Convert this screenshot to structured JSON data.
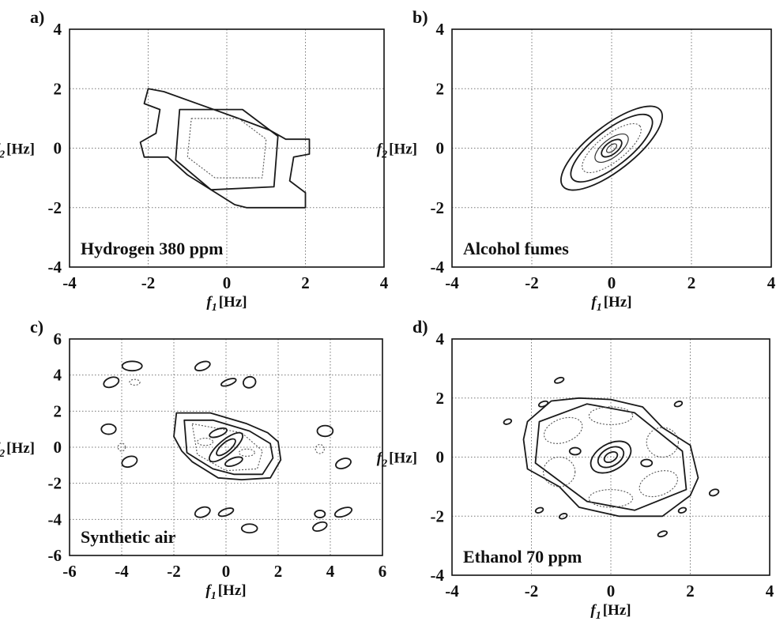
{
  "chart_data": [
    {
      "type": "contour",
      "panel_label": "a)",
      "annotation": "Hydrogen  380 ppm",
      "xlabel": "f1 [Hz]",
      "ylabel": "f2 [Hz]",
      "xlim": [
        -4,
        4
      ],
      "ylim": [
        -4,
        4
      ],
      "xticks": [
        -4,
        -2,
        0,
        2,
        4
      ],
      "yticks": [
        -4,
        -2,
        0,
        2,
        4
      ],
      "grid": true,
      "contours": [
        {
          "style": "solid",
          "points": [
            [
              -2,
              2
            ],
            [
              -1.6,
              1.9
            ],
            [
              0.3,
              1
            ],
            [
              1.1,
              0.6
            ],
            [
              1.5,
              0.3
            ],
            [
              2.1,
              0.3
            ],
            [
              2.1,
              -0.2
            ],
            [
              1.7,
              -0.3
            ],
            [
              1.6,
              -1.1
            ],
            [
              2.0,
              -1.5
            ],
            [
              2.0,
              -2.0
            ],
            [
              0.5,
              -2.0
            ],
            [
              0.2,
              -1.9
            ],
            [
              -1.0,
              -0.9
            ],
            [
              -1.5,
              -0.3
            ],
            [
              -2.1,
              -0.3
            ],
            [
              -2.2,
              0.2
            ],
            [
              -1.8,
              0.5
            ],
            [
              -1.7,
              1.3
            ],
            [
              -2.1,
              1.5
            ]
          ]
        },
        {
          "style": "solid",
          "points": [
            [
              -1.2,
              1.3
            ],
            [
              0.4,
              1.3
            ],
            [
              1.3,
              0.4
            ],
            [
              1.2,
              -1.3
            ],
            [
              -0.4,
              -1.4
            ],
            [
              -1.3,
              -0.4
            ]
          ]
        },
        {
          "style": "dotted",
          "points": [
            [
              -0.9,
              1.0
            ],
            [
              0.3,
              1.0
            ],
            [
              1.0,
              0.3
            ],
            [
              0.9,
              -1.0
            ],
            [
              -0.3,
              -1.0
            ],
            [
              -1.0,
              -0.3
            ]
          ]
        }
      ]
    },
    {
      "type": "contour",
      "panel_label": "b)",
      "annotation": "Alcohol fumes",
      "xlabel": "f1 [Hz]",
      "ylabel": "f2 [Hz]",
      "xlim": [
        -4,
        4
      ],
      "ylim": [
        -4,
        4
      ],
      "xticks": [
        -4,
        -2,
        0,
        2,
        4
      ],
      "yticks": [
        -4,
        -2,
        0,
        2,
        4
      ],
      "grid": true,
      "contours": [
        {
          "style": "ellipse-solid",
          "cx": 0,
          "cy": 0,
          "rx": 1.55,
          "ry": 0.75,
          "angle": -38
        },
        {
          "style": "ellipse-solid",
          "cx": 0,
          "cy": 0,
          "rx": 1.25,
          "ry": 0.6,
          "angle": -38
        },
        {
          "style": "ellipse-dotted",
          "cx": 0,
          "cy": 0,
          "rx": 0.9,
          "ry": 0.45,
          "angle": -38
        },
        {
          "style": "ellipse-thin",
          "cx": 0,
          "cy": 0,
          "rx": 0.5,
          "ry": 0.3,
          "angle": -38
        },
        {
          "style": "ellipse-solid",
          "cx": 0,
          "cy": 0,
          "rx": 0.3,
          "ry": 0.2,
          "angle": -38
        },
        {
          "style": "ellipse-thin",
          "cx": 0,
          "cy": 0,
          "rx": 0.15,
          "ry": 0.1,
          "angle": -38
        }
      ]
    },
    {
      "type": "contour",
      "panel_label": "c)",
      "annotation": "Synthetic air",
      "xlabel": "f1 [Hz]",
      "ylabel": "f2 [Hz]",
      "xlim": [
        -6,
        6
      ],
      "ylim": [
        -6,
        6
      ],
      "xticks": [
        -6,
        -4,
        -2,
        0,
        2,
        4,
        6
      ],
      "yticks": [
        -6,
        -4,
        -2,
        0,
        2,
        4,
        6
      ],
      "grid": true,
      "contours": [
        {
          "style": "solid",
          "points": [
            [
              -1.9,
              1.9
            ],
            [
              -0.6,
              1.9
            ],
            [
              0.8,
              1.3
            ],
            [
              1.6,
              0.8
            ],
            [
              2.0,
              0.3
            ],
            [
              2.1,
              -0.7
            ],
            [
              1.7,
              -1.7
            ],
            [
              0.6,
              -1.8
            ],
            [
              -0.3,
              -1.7
            ],
            [
              -1.3,
              -0.8
            ],
            [
              -1.7,
              -0.2
            ],
            [
              -2.0,
              0.6
            ]
          ]
        },
        {
          "style": "solid",
          "points": [
            [
              -1.6,
              1.5
            ],
            [
              -0.5,
              1.5
            ],
            [
              0.9,
              0.9
            ],
            [
              1.7,
              0.2
            ],
            [
              1.8,
              -0.6
            ],
            [
              1.4,
              -1.5
            ],
            [
              0.3,
              -1.5
            ],
            [
              -0.5,
              -1.2
            ],
            [
              -1.5,
              -0.3
            ]
          ]
        },
        {
          "style": "dotted",
          "points": [
            [
              -1.3,
              1.3
            ],
            [
              0.6,
              0.8
            ],
            [
              1.4,
              -0.2
            ],
            [
              1.2,
              -1.2
            ],
            [
              0.0,
              -1.3
            ],
            [
              -1.1,
              -0.4
            ]
          ]
        },
        {
          "style": "ellipse-solid",
          "cx": 0,
          "cy": 0,
          "rx": 0.8,
          "ry": 0.4,
          "angle": -40
        },
        {
          "style": "ellipse-solid",
          "cx": 0,
          "cy": 0,
          "rx": 0.45,
          "ry": 0.25,
          "angle": -40
        },
        {
          "style": "ellipse-dotted",
          "cx": -0.8,
          "cy": 0.3,
          "rx": 0.3,
          "ry": 0.2,
          "angle": 0
        },
        {
          "style": "ellipse-dotted",
          "cx": 0.8,
          "cy": -0.3,
          "rx": 0.3,
          "ry": 0.2,
          "angle": 0
        },
        {
          "style": "ellipse-solid",
          "cx": -0.3,
          "cy": 0.8,
          "rx": 0.35,
          "ry": 0.2,
          "angle": -20
        },
        {
          "style": "ellipse-solid",
          "cx": 0.3,
          "cy": -0.8,
          "rx": 0.35,
          "ry": 0.2,
          "angle": -20
        },
        {
          "style": "ellipse-solid",
          "cx": -3.6,
          "cy": 4.5,
          "rx": 0.38,
          "ry": 0.26,
          "angle": 0
        },
        {
          "style": "ellipse-solid",
          "cx": -4.4,
          "cy": 3.6,
          "rx": 0.3,
          "ry": 0.26,
          "angle": -20
        },
        {
          "style": "ellipse-dotted",
          "cx": -3.5,
          "cy": 3.6,
          "rx": 0.2,
          "ry": 0.16,
          "angle": 0
        },
        {
          "style": "ellipse-solid",
          "cx": -0.9,
          "cy": 4.5,
          "rx": 0.3,
          "ry": 0.22,
          "angle": -20
        },
        {
          "style": "ellipse-solid",
          "cx": 0.1,
          "cy": 3.6,
          "rx": 0.3,
          "ry": 0.16,
          "angle": -20
        },
        {
          "style": "ellipse-solid",
          "cx": 0.9,
          "cy": 3.6,
          "rx": 0.24,
          "ry": 0.3,
          "angle": -20
        },
        {
          "style": "ellipse-solid",
          "cx": -4.5,
          "cy": 1.0,
          "rx": 0.28,
          "ry": 0.28,
          "angle": 0
        },
        {
          "style": "ellipse-dotted",
          "cx": -4.0,
          "cy": 0.0,
          "rx": 0.14,
          "ry": 0.22,
          "angle": 0
        },
        {
          "style": "ellipse-solid",
          "cx": -3.7,
          "cy": -0.8,
          "rx": 0.3,
          "ry": 0.28,
          "angle": -20
        },
        {
          "style": "ellipse-solid",
          "cx": 3.8,
          "cy": 0.9,
          "rx": 0.3,
          "ry": 0.3,
          "angle": 0
        },
        {
          "style": "ellipse-dotted",
          "cx": 3.6,
          "cy": -0.1,
          "rx": 0.17,
          "ry": 0.25,
          "angle": 0
        },
        {
          "style": "ellipse-solid",
          "cx": 4.5,
          "cy": -0.9,
          "rx": 0.3,
          "ry": 0.26,
          "angle": -20
        },
        {
          "style": "ellipse-solid",
          "cx": -0.9,
          "cy": -3.6,
          "rx": 0.3,
          "ry": 0.26,
          "angle": -20
        },
        {
          "style": "ellipse-solid",
          "cx": 0.0,
          "cy": -3.6,
          "rx": 0.3,
          "ry": 0.18,
          "angle": -20
        },
        {
          "style": "ellipse-solid",
          "cx": 0.9,
          "cy": -4.5,
          "rx": 0.3,
          "ry": 0.24,
          "angle": 0
        },
        {
          "style": "ellipse-solid",
          "cx": 3.6,
          "cy": -3.7,
          "rx": 0.2,
          "ry": 0.2,
          "angle": 0
        },
        {
          "style": "ellipse-solid",
          "cx": 4.5,
          "cy": -3.6,
          "rx": 0.34,
          "ry": 0.22,
          "angle": -20
        },
        {
          "style": "ellipse-solid",
          "cx": 3.6,
          "cy": -4.4,
          "rx": 0.28,
          "ry": 0.22,
          "angle": -20
        }
      ]
    },
    {
      "type": "contour",
      "panel_label": "d)",
      "annotation": "Ethanol  70 ppm",
      "xlabel": "f1 [Hz]",
      "ylabel": "f2 [Hz]",
      "xlim": [
        -4,
        4
      ],
      "ylim": [
        -4,
        4
      ],
      "xticks": [
        -4,
        -2,
        0,
        2,
        4
      ],
      "yticks": [
        -4,
        -2,
        0,
        2,
        4
      ],
      "grid": true,
      "contours": [
        {
          "style": "solid",
          "points": [
            [
              -2.1,
              1.2
            ],
            [
              -1.5,
              1.9
            ],
            [
              -0.8,
              2.0
            ],
            [
              0,
              1.95
            ],
            [
              0.8,
              1.7
            ],
            [
              1.3,
              1.0
            ],
            [
              2.0,
              0.4
            ],
            [
              2.2,
              -0.7
            ],
            [
              2.0,
              -1.3
            ],
            [
              1.3,
              -2.0
            ],
            [
              0.2,
              -2.0
            ],
            [
              -0.8,
              -1.7
            ],
            [
              -1.3,
              -1.0
            ],
            [
              -2.1,
              -0.4
            ],
            [
              -2.2,
              0.6
            ]
          ]
        },
        {
          "style": "solid",
          "points": [
            [
              -1.8,
              1.2
            ],
            [
              -0.6,
              1.8
            ],
            [
              0.6,
              1.5
            ],
            [
              1.8,
              0.2
            ],
            [
              1.9,
              -1.1
            ],
            [
              0.6,
              -1.8
            ],
            [
              -0.6,
              -1.5
            ],
            [
              -1.9,
              -0.2
            ]
          ]
        },
        {
          "style": "ellipse-solid",
          "cx": 0,
          "cy": 0,
          "rx": 0.55,
          "ry": 0.45,
          "angle": -30
        },
        {
          "style": "ellipse-solid",
          "cx": 0,
          "cy": 0,
          "rx": 0.35,
          "ry": 0.3,
          "angle": -30
        },
        {
          "style": "ellipse-solid",
          "cx": 0,
          "cy": 0,
          "rx": 0.18,
          "ry": 0.15,
          "angle": -30
        },
        {
          "style": "ellipse-dotted",
          "cx": -1.2,
          "cy": 0.9,
          "rx": 0.5,
          "ry": 0.4,
          "angle": -20
        },
        {
          "style": "ellipse-dotted",
          "cx": 0.0,
          "cy": 1.4,
          "rx": 0.55,
          "ry": 0.3,
          "angle": 0
        },
        {
          "style": "ellipse-dotted",
          "cx": 1.3,
          "cy": 0.5,
          "rx": 0.4,
          "ry": 0.5,
          "angle": 0
        },
        {
          "style": "ellipse-dotted",
          "cx": 1.2,
          "cy": -0.9,
          "rx": 0.5,
          "ry": 0.4,
          "angle": -20
        },
        {
          "style": "ellipse-dotted",
          "cx": 0.0,
          "cy": -1.4,
          "rx": 0.55,
          "ry": 0.3,
          "angle": 0
        },
        {
          "style": "ellipse-dotted",
          "cx": -1.3,
          "cy": -0.5,
          "rx": 0.4,
          "ry": 0.5,
          "angle": 0
        },
        {
          "style": "ellipse-solid",
          "cx": -0.9,
          "cy": 0.2,
          "rx": 0.14,
          "ry": 0.12,
          "angle": 0
        },
        {
          "style": "ellipse-solid",
          "cx": 0.9,
          "cy": -0.2,
          "rx": 0.14,
          "ry": 0.12,
          "angle": 0
        },
        {
          "style": "ellipse-solid",
          "cx": -1.7,
          "cy": 1.8,
          "rx": 0.12,
          "ry": 0.08,
          "angle": -20
        },
        {
          "style": "ellipse-solid",
          "cx": -2.6,
          "cy": 1.2,
          "rx": 0.1,
          "ry": 0.08,
          "angle": -20
        },
        {
          "style": "ellipse-solid",
          "cx": -1.3,
          "cy": 2.6,
          "rx": 0.12,
          "ry": 0.08,
          "angle": -20
        },
        {
          "style": "ellipse-solid",
          "cx": 1.7,
          "cy": 1.8,
          "rx": 0.1,
          "ry": 0.08,
          "angle": -20
        },
        {
          "style": "ellipse-solid",
          "cx": 1.8,
          "cy": -1.8,
          "rx": 0.1,
          "ry": 0.08,
          "angle": -20
        },
        {
          "style": "ellipse-solid",
          "cx": 2.6,
          "cy": -1.2,
          "rx": 0.12,
          "ry": 0.1,
          "angle": -20
        },
        {
          "style": "ellipse-solid",
          "cx": 1.3,
          "cy": -2.6,
          "rx": 0.12,
          "ry": 0.08,
          "angle": -20
        },
        {
          "style": "ellipse-solid",
          "cx": -1.8,
          "cy": -1.8,
          "rx": 0.1,
          "ry": 0.08,
          "angle": -20
        },
        {
          "style": "ellipse-solid",
          "cx": -1.2,
          "cy": -2.0,
          "rx": 0.1,
          "ry": 0.08,
          "angle": -20
        }
      ]
    }
  ]
}
